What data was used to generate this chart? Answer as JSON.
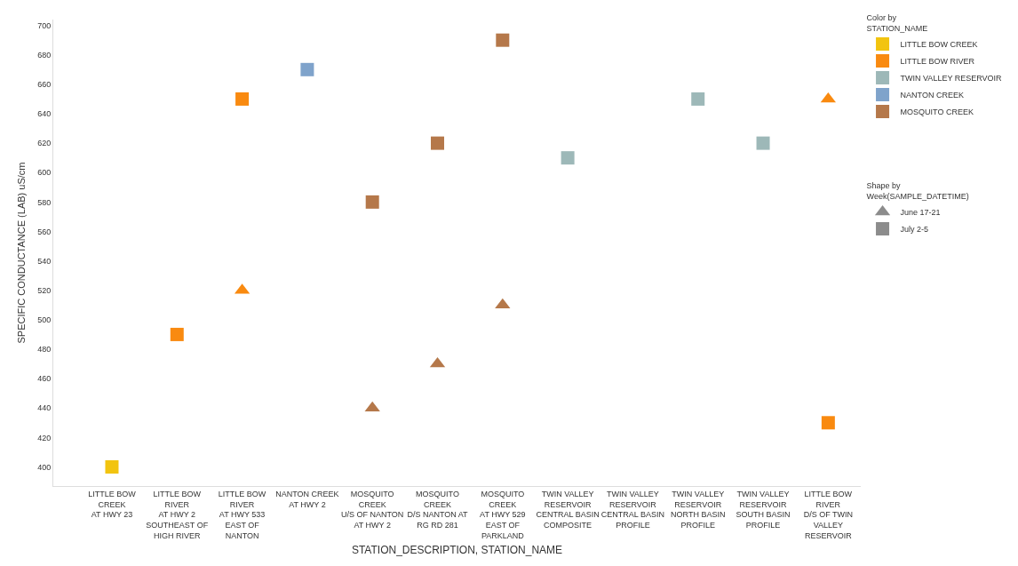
{
  "chart_data": {
    "type": "scatter",
    "xlabel": "STATION_DESCRIPTION, STATION_NAME",
    "ylabel": "SPECIFIC CONDUCTANCE (LAB) uS/cm",
    "legend_title": "Color by\nSTATION_NAME",
    "annotations": [
      "Shape by\nWeek(SAMPLE_DATETIME)"
    ],
    "categories": [
      "LITTLE BOW CREEK\nAT HWY 23",
      "LITTLE BOW RIVER\nAT HWY 2 SOUTHEAST OF HIGH RIVER",
      "LITTLE BOW RIVER\nAT HWY 533 EAST OF NANTON",
      "NANTON CREEK\nAT HWY 2",
      "MOSQUITO CREEK\nU/S OF NANTON AT HWY 2",
      "MOSQUITO CREEK\nD/S NANTON AT RG RD 281",
      "MOSQUITO CREEK\nAT HWY 529 EAST OF PARKLAND",
      "TWIN VALLEY RESERVOIR\nCENTRAL BASIN COMPOSITE",
      "TWIN VALLEY RESERVOIR\nCENTRAL BASIN PROFILE",
      "TWIN VALLEY RESERVOIR\nNORTH BASIN PROFILE",
      "TWIN VALLEY RESERVOIR\nSOUTH BASIN PROFILE",
      "LITTLE BOW RIVER\nD/S OF TWIN VALLEY RESERVOIR"
    ],
    "series": [
      {
        "name": "LITTLE BOW CREEK",
        "color": "#f2c40f",
        "marker": "square",
        "values": [
          400,
          null,
          null,
          null,
          null,
          null,
          null,
          null,
          null,
          null,
          null,
          null
        ]
      },
      {
        "name": "LITTLE BOW RIVER",
        "color": "#f98a10",
        "marker": "square",
        "values": [
          null,
          490,
          650,
          null,
          null,
          null,
          null,
          null,
          null,
          null,
          null,
          430
        ]
      },
      {
        "name": "TWIN VALLEY RESERVOIR",
        "color": "#9db8b8",
        "marker": "square",
        "values": [
          null,
          null,
          null,
          null,
          null,
          null,
          null,
          610,
          null,
          650,
          620,
          null
        ]
      },
      {
        "name": "NANTON CREEK",
        "color": "#7fa3cb",
        "marker": "square",
        "values": [
          null,
          null,
          null,
          670,
          null,
          null,
          null,
          null,
          null,
          null,
          null,
          null
        ]
      },
      {
        "name": "MOSQUITO CREEK",
        "color": "#b5784a",
        "marker": "square",
        "values": [
          null,
          null,
          null,
          null,
          580,
          620,
          690,
          null,
          null,
          null,
          null,
          null
        ]
      },
      {
        "color": "#f98a10",
        "marker": "triangle",
        "values": [
          null,
          null,
          520,
          null,
          null,
          null,
          null,
          null,
          null,
          null,
          null,
          650
        ]
      },
      {
        "color": "#b5784a",
        "marker": "triangle",
        "values": [
          null,
          null,
          null,
          null,
          440,
          470,
          510,
          null,
          null,
          null,
          null,
          null
        ]
      },
      {
        "name": "June 17-21",
        "color": "#8c8c8c",
        "marker": "triangle",
        "values": [
          null,
          null,
          null,
          null,
          null,
          null,
          null,
          null,
          null,
          null,
          null,
          null
        ]
      },
      {
        "name": "July 2-5",
        "color": "#8c8c8c",
        "marker": "square",
        "values": [
          null,
          null,
          null,
          null,
          null,
          null,
          null,
          null,
          null,
          null,
          null,
          null
        ]
      }
    ],
    "ylim": [
      387,
      704
    ],
    "yticks": [
      400,
      420,
      440,
      460,
      480,
      500,
      520,
      540,
      560,
      580,
      600,
      620,
      640,
      660,
      680,
      700
    ],
    "grid": false,
    "legend": "top right"
  }
}
